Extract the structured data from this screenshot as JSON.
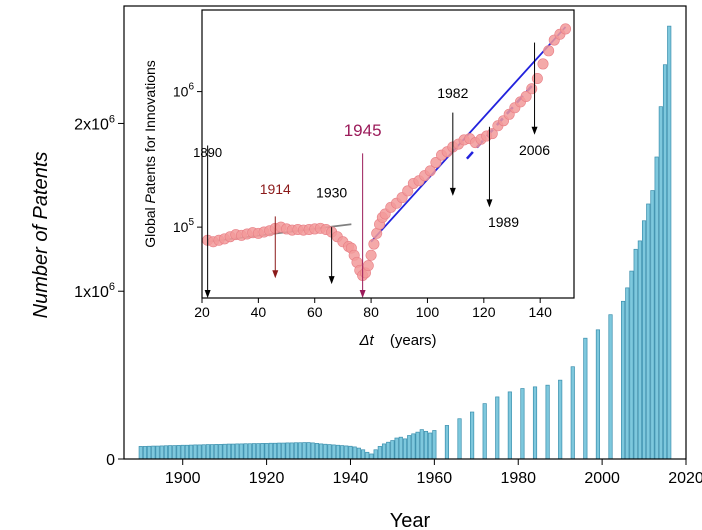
{
  "chart_data": [
    {
      "type": "bar",
      "xlabel": "Year",
      "ylabel": "Number of Patents",
      "xlim": [
        1886,
        2020
      ],
      "ylim": [
        0,
        2700000
      ],
      "xticks": [
        "1900",
        "1920",
        "1940",
        "1960",
        "1980",
        "2000",
        "2020"
      ],
      "yticks": [
        {
          "value": 0,
          "mantissa": "0",
          "exp": ""
        },
        {
          "value": 1000000,
          "mantissa": "1x10",
          "exp": "6"
        },
        {
          "value": 2000000,
          "mantissa": "2x10",
          "exp": "6"
        }
      ],
      "bar_color": "#7ec8dd",
      "bar_edge": "#3a8fad",
      "x": [
        1890,
        1891,
        1892,
        1893,
        1894,
        1895,
        1896,
        1897,
        1898,
        1899,
        1900,
        1901,
        1902,
        1903,
        1904,
        1905,
        1906,
        1907,
        1908,
        1909,
        1910,
        1911,
        1912,
        1913,
        1914,
        1915,
        1916,
        1917,
        1918,
        1919,
        1920,
        1921,
        1922,
        1923,
        1924,
        1925,
        1926,
        1927,
        1928,
        1929,
        1930,
        1931,
        1932,
        1933,
        1934,
        1935,
        1936,
        1937,
        1938,
        1939,
        1940,
        1941,
        1942,
        1943,
        1944,
        1945,
        1946,
        1947,
        1948,
        1949,
        1950,
        1951,
        1952,
        1953,
        1954,
        1955,
        1956,
        1957,
        1958,
        1959,
        1960,
        1963,
        1966,
        1969,
        1972,
        1975,
        1978,
        1981,
        1984,
        1987,
        1990,
        1993,
        1996,
        1999,
        2002,
        2005,
        2006,
        2007,
        2008,
        2009,
        2010,
        2011,
        2012,
        2013,
        2014,
        2015,
        2016
      ],
      "values": [
        75000,
        75000,
        76000,
        77000,
        77000,
        78000,
        79000,
        80000,
        80000,
        81000,
        82000,
        82000,
        83000,
        84000,
        84000,
        85000,
        86000,
        86000,
        87000,
        87000,
        88000,
        89000,
        89000,
        90000,
        90000,
        91000,
        91000,
        92000,
        92000,
        93000,
        93000,
        94000,
        94000,
        95000,
        95000,
        96000,
        96000,
        97000,
        97000,
        98000,
        98000,
        96000,
        93000,
        90000,
        88000,
        86000,
        84000,
        82000,
        80000,
        78000,
        76000,
        72000,
        65000,
        55000,
        40000,
        30000,
        55000,
        75000,
        90000,
        100000,
        110000,
        125000,
        130000,
        120000,
        140000,
        150000,
        160000,
        175000,
        165000,
        155000,
        170000,
        200000,
        240000,
        280000,
        330000,
        370000,
        400000,
        420000,
        430000,
        440000,
        470000,
        550000,
        720000,
        770000,
        860000,
        940000,
        1020000,
        1120000,
        1250000,
        1300000,
        1420000,
        1520000,
        1600000,
        1800000,
        2100000,
        2350000,
        2580000
      ]
    },
    {
      "type": "scatter",
      "xlabel_var": "Δt",
      "xlabel_unit": "(years)",
      "ylabel_parts": [
        "Global ",
        "P",
        "atents for Innovations"
      ],
      "xlim": [
        20,
        152
      ],
      "ylog": true,
      "ylim": [
        30000,
        4000000
      ],
      "xticks": [
        "20",
        "40",
        "60",
        "80",
        "100",
        "120",
        "140"
      ],
      "yticks": [
        {
          "value": 100000,
          "mantissa": "10",
          "exp": "5"
        },
        {
          "value": 1000000,
          "mantissa": "10",
          "exp": "6"
        }
      ],
      "point_color": "#f29a9a",
      "points": [
        [
          22,
          80000
        ],
        [
          24,
          78000
        ],
        [
          26,
          80000
        ],
        [
          28,
          82000
        ],
        [
          30,
          85000
        ],
        [
          32,
          88000
        ],
        [
          34,
          87000
        ],
        [
          36,
          89000
        ],
        [
          38,
          91000
        ],
        [
          40,
          90000
        ],
        [
          42,
          92000
        ],
        [
          44,
          94000
        ],
        [
          46,
          98000
        ],
        [
          48,
          100000
        ],
        [
          50,
          97000
        ],
        [
          52,
          95000
        ],
        [
          54,
          96000
        ],
        [
          56,
          95000
        ],
        [
          58,
          96000
        ],
        [
          60,
          97000
        ],
        [
          62,
          98000
        ],
        [
          64,
          96000
        ],
        [
          66,
          92000
        ],
        [
          68,
          85000
        ],
        [
          70,
          78000
        ],
        [
          72,
          72000
        ],
        [
          73,
          70000
        ],
        [
          74,
          62000
        ],
        [
          75,
          55000
        ],
        [
          76,
          48000
        ],
        [
          77,
          44000
        ],
        [
          78,
          46000
        ],
        [
          79,
          52000
        ],
        [
          80,
          62000
        ],
        [
          81,
          75000
        ],
        [
          82,
          90000
        ],
        [
          83,
          105000
        ],
        [
          84,
          118000
        ],
        [
          85,
          125000
        ],
        [
          87,
          140000
        ],
        [
          89,
          150000
        ],
        [
          91,
          165000
        ],
        [
          93,
          185000
        ],
        [
          95,
          210000
        ],
        [
          97,
          220000
        ],
        [
          99,
          240000
        ],
        [
          101,
          260000
        ],
        [
          103,
          300000
        ],
        [
          105,
          340000
        ],
        [
          107,
          360000
        ],
        [
          109,
          390000
        ],
        [
          111,
          410000
        ],
        [
          113,
          440000
        ],
        [
          115,
          450000
        ],
        [
          117,
          420000
        ],
        [
          119,
          445000
        ],
        [
          121,
          470000
        ],
        [
          123,
          490000
        ],
        [
          125,
          560000
        ],
        [
          127,
          610000
        ],
        [
          129,
          680000
        ],
        [
          131,
          760000
        ],
        [
          133,
          840000
        ],
        [
          135,
          920000
        ],
        [
          137,
          1050000
        ],
        [
          139,
          1250000
        ],
        [
          141,
          1600000
        ],
        [
          143,
          2000000
        ],
        [
          145,
          2400000
        ],
        [
          147,
          2650000
        ],
        [
          149,
          2900000
        ]
      ],
      "fit_lines": [
        {
          "color": "#808080",
          "dashed": false,
          "x": [
            22,
            73
          ],
          "y": [
            78000,
            105000
          ]
        },
        {
          "color": "#2222dd",
          "dashed": false,
          "x": [
            80,
            149
          ],
          "y": [
            78000,
            3000000
          ]
        },
        {
          "color": "#2222dd",
          "dashed": true,
          "x": [
            114,
            137
          ],
          "y": [
            320000,
            1100000
          ]
        }
      ],
      "annotations": [
        {
          "text": "1890",
          "color": "#000000",
          "size": 13,
          "x": 22,
          "top": 400000,
          "bottom": 30000,
          "tx": 22,
          "ty": 330000
        },
        {
          "text": "1914",
          "color": "#8b1a1a",
          "size": 14,
          "x": 46,
          "top": 120000,
          "bottom": 42000,
          "tx": 46,
          "ty": 175000
        },
        {
          "text": "1930",
          "color": "#000000",
          "size": 14,
          "x": 66,
          "top": 100000,
          "bottom": 38000,
          "tx": 66,
          "ty": 165000
        },
        {
          "text": "1945",
          "color": "#9b1b5a",
          "size": 17,
          "x": 77,
          "top": 350000,
          "bottom": 30000,
          "tx": 77,
          "ty": 470000
        },
        {
          "text": "1982",
          "color": "#000000",
          "size": 14,
          "x": 109,
          "top": 700000,
          "bottom": 170000,
          "tx": 109,
          "ty": 900000
        },
        {
          "text": "1989",
          "color": "#000000",
          "size": 14,
          "x": 122,
          "top": 550000,
          "bottom": 140000,
          "tx": 127,
          "ty": 100000
        },
        {
          "text": "2006",
          "color": "#000000",
          "size": 14,
          "x": 138,
          "top": 2300000,
          "bottom": 480000,
          "tx": 138,
          "ty": 340000
        }
      ]
    }
  ]
}
